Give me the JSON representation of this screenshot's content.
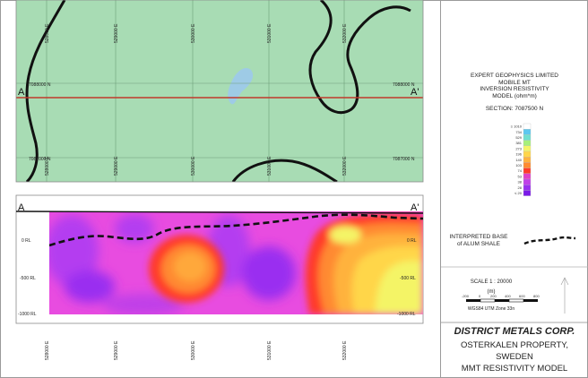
{
  "plan_map": {
    "eastings": [
      "528000 E",
      "529000 E",
      "530000 E",
      "531000 E",
      "532000 E"
    ],
    "northing_label": "7088000 N",
    "southing_label": "7087000 N",
    "section_start": "A",
    "section_end": "A'"
  },
  "section": {
    "start": "A",
    "end": "A'",
    "depth_labels": [
      "0 RL",
      "-500 RL",
      "-1000 RL"
    ],
    "eastings": [
      "528000 E",
      "529000 E",
      "530000 E",
      "531000 E",
      "532000 E"
    ]
  },
  "title_block": {
    "company_lines": [
      "EXPERT GEOPHYSICS LIMITED",
      "MOBILE MT",
      "INVERSION RESISTIVITY",
      "MODEL (ohm*m)"
    ],
    "section_label": "SECTION: 7087500 N"
  },
  "colorbar": {
    "labels": [
      "≥ 1010",
      "734",
      "529",
      "381",
      "273",
      "196",
      "140",
      "103",
      "74",
      "53",
      "38",
      "28",
      "≤ 20"
    ],
    "colors": [
      "#ffffff",
      "#5cc8f0",
      "#6fe0d0",
      "#a6f07a",
      "#f4f466",
      "#ffd64a",
      "#ffb23e",
      "#ff8a30",
      "#ff3a2a",
      "#e040c8",
      "#c040e8",
      "#9a2ef0",
      "#7a1ae8"
    ]
  },
  "legend": {
    "line1": "INTERPRETED BASE",
    "line2": "of ALUM SHALE"
  },
  "scale": {
    "label": "SCALE  1 : 20000",
    "unit": "(m)",
    "ticks": [
      "-200",
      "0",
      "200",
      "400",
      "600",
      "800"
    ],
    "projection": "WGS84 UTM Zone 33n"
  },
  "footer": {
    "company": "DISTRICT METALS CORP.",
    "property": "OSTERKALEN PROPERTY,",
    "country": "SWEDEN",
    "model": "MMT RESISTIVITY MODEL"
  },
  "colors": {
    "map_fill": "#a8dcb4",
    "section_line": "#c0392b"
  }
}
